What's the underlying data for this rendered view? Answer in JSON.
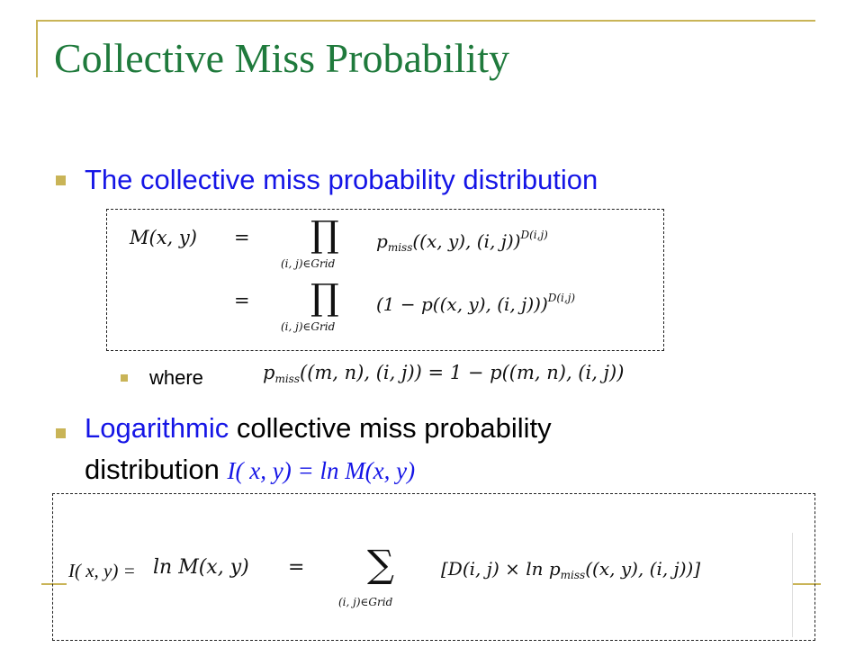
{
  "slide": {
    "title": "Collective Miss Probability",
    "bullets": [
      {
        "text": "The collective miss probability distribution"
      },
      {
        "sub": "where"
      },
      {
        "text_blue": "Logarithmic",
        "text_rest_1": " collective miss probability",
        "text_line2": "distribution ",
        "inline_formula": "I( x, y) = ln M(x, y)"
      }
    ],
    "equations": {
      "eq1_lhs": "M(x, y)",
      "eq1_eq": "=",
      "eq1_prod": "∏",
      "eq1_under": "(i, j)∈Grid",
      "eq1_rhs": "p",
      "eq1_rhs_sub": "miss",
      "eq1_rhs_tail": "((x, y), (i, j))",
      "eq1_sup": "D(i,j)",
      "eq2_eq": "=",
      "eq2_prod": "∏",
      "eq2_under": "(i, j)∈Grid",
      "eq2_rhs": "(1 − p((x, y), (i, j)))",
      "eq2_sup": "D(i,j)",
      "where_lhs": "p",
      "where_lhs_sub": "miss",
      "where_rest": "((m, n), (i, j)) = 1 − p((m, n), (i, j))",
      "log_prefix": "I( x, y) = ",
      "log_lhs": "ln M(x, y)",
      "log_eq": "=",
      "log_sum": "∑",
      "log_under": "(i, j)∈Grid",
      "log_rhs_a": "[D(i, j) × ln p",
      "log_rhs_sub": "miss",
      "log_rhs_b": "((x, y), (i, j))]"
    }
  },
  "colors": {
    "title": "#1f7a3c",
    "accent": "#c9b457",
    "blue_text": "#1515e6"
  }
}
